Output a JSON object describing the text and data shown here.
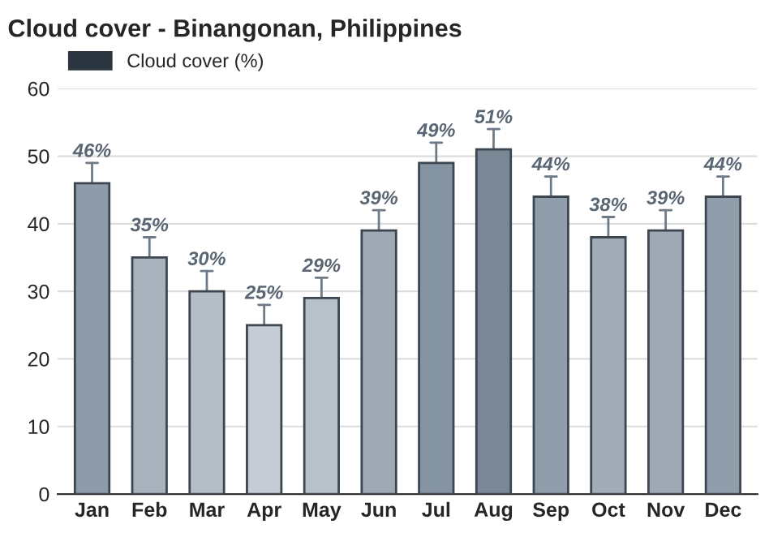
{
  "chart_data": {
    "type": "bar",
    "title": "Cloud cover - Binangonan, Philippines",
    "categories": [
      "Jan",
      "Feb",
      "Mar",
      "Apr",
      "May",
      "Jun",
      "Jul",
      "Aug",
      "Sep",
      "Oct",
      "Nov",
      "Dec"
    ],
    "series": [
      {
        "name": "Cloud cover (%)",
        "color": "#2b3640",
        "values": [
          46,
          35,
          30,
          25,
          29,
          39,
          49,
          51,
          44,
          38,
          39,
          44
        ],
        "colors": [
          "#8e9baa",
          "#a8b2bc",
          "#b5bec7",
          "#c5ccd3",
          "#b8c0c9",
          "#9ea9b4",
          "#8594a2",
          "#7a8896",
          "#909eab",
          "#a2acb7",
          "#9ea9b4",
          "#909eab"
        ],
        "errors": [
          [
            46,
            49
          ],
          [
            35,
            38
          ],
          [
            30,
            33
          ],
          [
            25,
            28
          ],
          [
            29,
            32
          ],
          [
            39,
            42
          ],
          [
            49,
            52
          ],
          [
            51,
            54
          ],
          [
            44,
            47
          ],
          [
            38,
            41
          ],
          [
            39,
            42
          ],
          [
            44,
            47
          ]
        ],
        "value_labels": [
          "46%",
          "35%",
          "30%",
          "25%",
          "29%",
          "39%",
          "49%",
          "51%",
          "44%",
          "38%",
          "39%",
          "44%"
        ]
      }
    ],
    "ylim": [
      0,
      60
    ],
    "yticks": [
      0,
      10,
      20,
      30,
      40,
      50,
      60
    ],
    "grid": "y",
    "legend": "top left"
  }
}
